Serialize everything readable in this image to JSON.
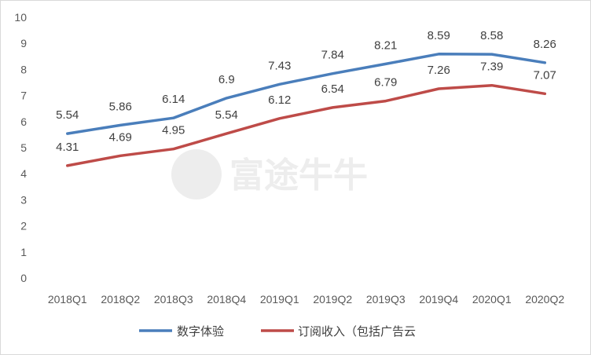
{
  "chart_data": {
    "type": "line",
    "title": "",
    "xlabel": "",
    "ylabel": "",
    "categories": [
      "2018Q1",
      "2018Q2",
      "2018Q3",
      "2018Q4",
      "2019Q1",
      "2019Q2",
      "2019Q3",
      "2019Q4",
      "2020Q1",
      "2020Q2"
    ],
    "ylim": [
      0,
      10
    ],
    "yticks": [
      "0",
      "1",
      "2",
      "3",
      "4",
      "5",
      "6",
      "7",
      "8",
      "9",
      "10"
    ],
    "grid": false,
    "legend": "bottom",
    "series": [
      {
        "name": "数字体验",
        "color": "#4a7ebb",
        "values": [
          5.54,
          5.86,
          6.14,
          6.9,
          7.43,
          7.84,
          8.21,
          8.59,
          8.58,
          8.26
        ],
        "labels": [
          "5.54",
          "5.86",
          "6.14",
          "6.9",
          "7.43",
          "7.84",
          "8.21",
          "8.59",
          "8.58",
          "8.26"
        ]
      },
      {
        "name": "订阅收入（包括广告云",
        "color": "#be4b48",
        "values": [
          4.31,
          4.69,
          4.95,
          5.54,
          6.12,
          6.54,
          6.79,
          7.26,
          7.39,
          7.07
        ],
        "labels": [
          "4.31",
          "4.69",
          "4.95",
          "5.54",
          "6.12",
          "6.54",
          "6.79",
          "7.26",
          "7.39",
          "7.07"
        ]
      }
    ],
    "watermark": "富途牛牛"
  }
}
